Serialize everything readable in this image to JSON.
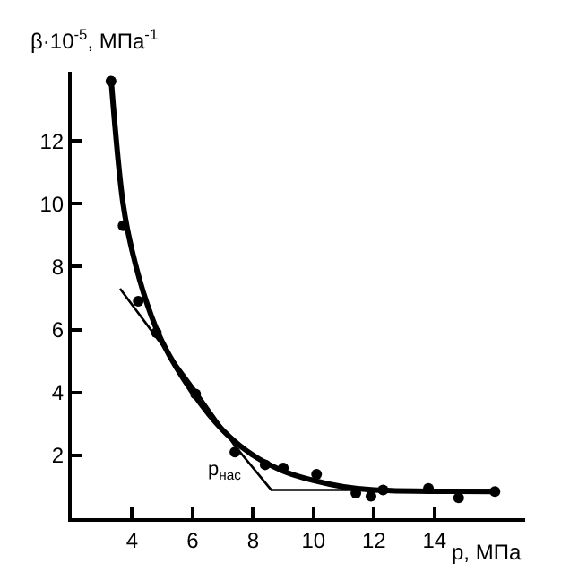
{
  "chart_data": {
    "type": "line",
    "xlabel": "p, МПа",
    "ylabel": "β·10$^{-5}$, МПа$^{-1}$",
    "xlim": [
      2,
      17
    ],
    "ylim": [
      0,
      14.2
    ],
    "xticks": [
      4,
      6,
      8,
      10,
      12,
      14
    ],
    "yticks": [
      2,
      4,
      6,
      8,
      10,
      12
    ],
    "series": [
      {
        "color": "#000000",
        "marker": "none",
        "line_style": "solid",
        "x": [
          3.6,
          5.0,
          6.0,
          7.4,
          8.6,
          16.0
        ],
        "values": [
          7.3,
          5.5,
          4.2,
          2.3,
          0.9,
          0.9
        ]
      },
      {
        "color": "#000000",
        "marker": "none",
        "line_style": "solid",
        "x": [
          3.3,
          3.7,
          4.0,
          4.5,
          5.0,
          6.0,
          7.0,
          8.0,
          9.0,
          10.0,
          11.0,
          12.0,
          16.0
        ],
        "values": [
          14.0,
          10.0,
          8.5,
          6.8,
          5.6,
          4.0,
          2.8,
          2.0,
          1.5,
          1.2,
          1.0,
          0.9,
          0.85
        ]
      },
      {
        "type": "scatter",
        "color": "#000000",
        "marker": "circle",
        "x": [
          3.3,
          3.7,
          4.2,
          4.8,
          6.1,
          7.4,
          8.4,
          9.0,
          10.1,
          11.4,
          11.9,
          12.3,
          13.8,
          14.8,
          16.0
        ],
        "values": [
          13.9,
          9.3,
          6.9,
          5.9,
          3.95,
          2.1,
          1.7,
          1.6,
          1.4,
          0.8,
          0.7,
          0.9,
          0.95,
          0.65,
          0.85
        ]
      }
    ],
    "annotations": [
      {
        "text": "p$_{нас}$",
        "x": 8.6,
        "y": 0.9
      }
    ]
  }
}
